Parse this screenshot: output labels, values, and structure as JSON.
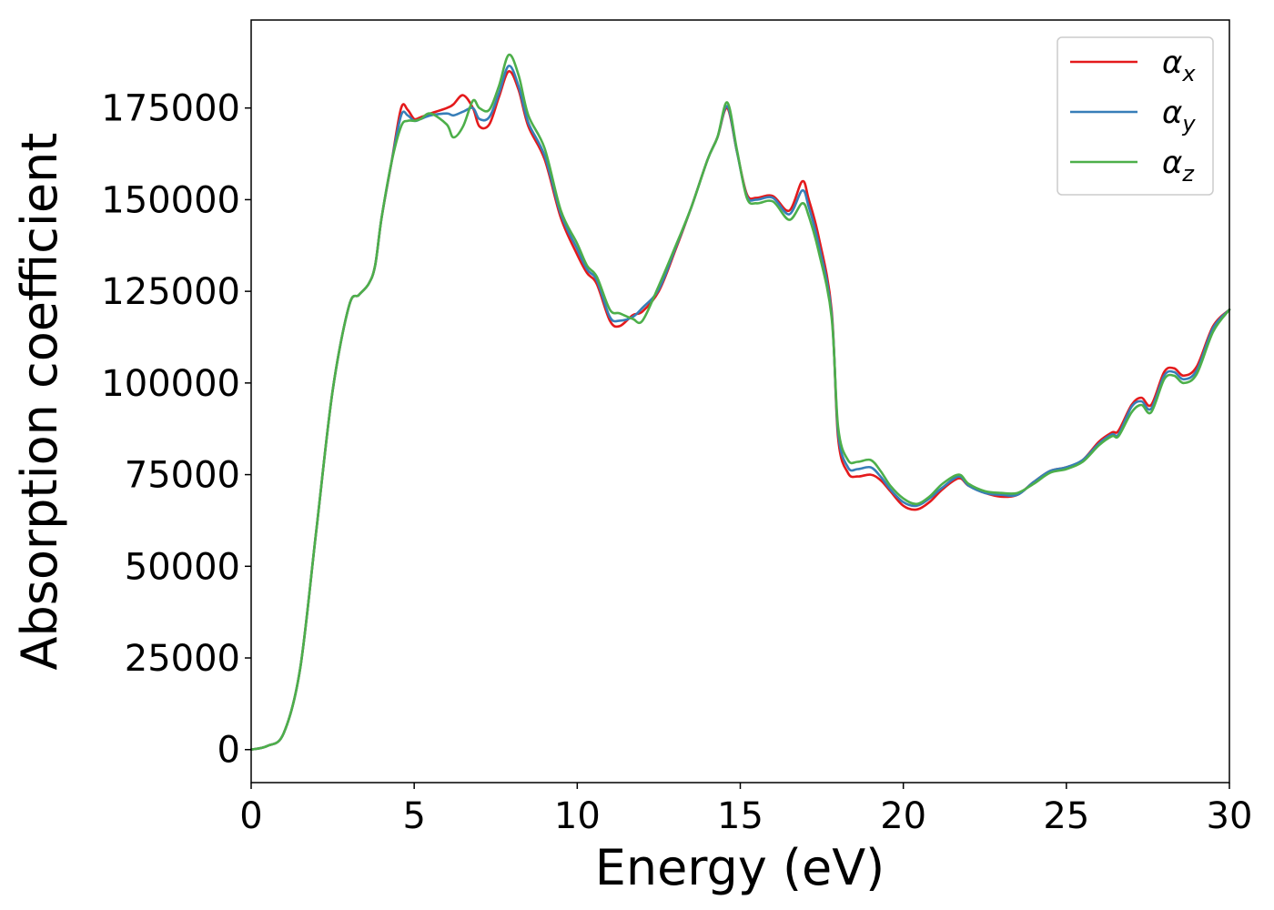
{
  "chart_data": {
    "type": "line",
    "title": "",
    "xlabel": "Energy (eV)",
    "ylabel": "Absorption coefficient",
    "xlim": [
      0,
      30
    ],
    "ylim": [
      -9000,
      199000
    ],
    "xticks": [
      0,
      5,
      10,
      15,
      20,
      25,
      30
    ],
    "yticks": [
      0,
      25000,
      50000,
      75000,
      100000,
      125000,
      150000,
      175000
    ],
    "xtick_labels": [
      "0",
      "5",
      "10",
      "15",
      "20",
      "25",
      "30"
    ],
    "ytick_labels": [
      "0",
      "25000",
      "50000",
      "75000",
      "100000",
      "125000",
      "150000",
      "175000"
    ],
    "grid": false,
    "legend_position": "top-right",
    "x": [
      0.0,
      0.5,
      1.0,
      1.5,
      2.0,
      2.5,
      3.0,
      3.3,
      3.6,
      3.8,
      4.0,
      4.3,
      4.6,
      4.8,
      5.0,
      5.2,
      5.5,
      6.0,
      6.2,
      6.5,
      6.8,
      7.0,
      7.3,
      7.6,
      7.9,
      8.2,
      8.5,
      9.0,
      9.5,
      10.0,
      10.3,
      10.6,
      11.0,
      11.3,
      11.7,
      12.0,
      12.5,
      13.0,
      13.5,
      14.0,
      14.3,
      14.6,
      14.9,
      15.2,
      15.5,
      16.0,
      16.5,
      16.9,
      17.1,
      17.4,
      17.8,
      18.0,
      18.3,
      18.6,
      19.0,
      19.3,
      19.6,
      20.0,
      20.4,
      20.8,
      21.2,
      21.7,
      22.0,
      22.5,
      23.0,
      23.5,
      24.0,
      24.5,
      25.0,
      25.5,
      26.0,
      26.4,
      26.6,
      27.0,
      27.3,
      27.6,
      28.0,
      28.3,
      28.6,
      29.0,
      29.5,
      30.0
    ],
    "series": [
      {
        "name": "α",
        "subscript": "x",
        "color": "#e41a1c",
        "values": [
          0,
          1000,
          4500,
          22000,
          60000,
          98000,
          121000,
          124000,
          127000,
          132000,
          145000,
          160000,
          175000,
          174500,
          172000,
          172500,
          173500,
          175000,
          176000,
          178500,
          175000,
          170000,
          170500,
          178000,
          185000,
          180000,
          170000,
          161000,
          145000,
          135000,
          130000,
          127000,
          117000,
          115500,
          118500,
          119500,
          125000,
          136000,
          148000,
          161000,
          167000,
          175000,
          163000,
          151500,
          150500,
          151000,
          147000,
          155000,
          150000,
          140000,
          120000,
          85000,
          75500,
          74500,
          75000,
          73500,
          70500,
          66500,
          65500,
          67500,
          71000,
          74000,
          72000,
          70000,
          69000,
          69500,
          73000,
          76000,
          77000,
          79000,
          84000,
          86500,
          87000,
          94000,
          96000,
          94000,
          103000,
          104000,
          102000,
          104500,
          115500,
          120000
        ]
      },
      {
        "name": "α",
        "subscript": "y",
        "color": "#377eb8",
        "values": [
          0,
          1000,
          4500,
          22000,
          60000,
          98000,
          121000,
          124000,
          127000,
          132000,
          145000,
          160000,
          173000,
          173000,
          171500,
          172000,
          173000,
          173500,
          173000,
          174000,
          175000,
          172000,
          172500,
          179000,
          186500,
          181000,
          171000,
          162000,
          146000,
          136500,
          131000,
          128000,
          118000,
          117000,
          118000,
          120500,
          125500,
          136500,
          148000,
          161000,
          167000,
          175500,
          163000,
          151000,
          150000,
          150500,
          146000,
          152500,
          148000,
          138000,
          119000,
          86500,
          77000,
          76500,
          77000,
          74500,
          71000,
          67500,
          66500,
          68500,
          71500,
          74500,
          72000,
          70000,
          69500,
          69500,
          73000,
          76000,
          77000,
          79000,
          83500,
          86000,
          86000,
          93500,
          95000,
          93000,
          102000,
          103000,
          101000,
          103500,
          115000,
          120000
        ]
      },
      {
        "name": "α",
        "subscript": "z",
        "color": "#4daf4a",
        "values": [
          0,
          1000,
          4500,
          22000,
          60000,
          98000,
          121000,
          124000,
          127000,
          132000,
          145000,
          160000,
          170000,
          171500,
          171500,
          172000,
          173500,
          170500,
          167000,
          170000,
          177000,
          175000,
          174500,
          181000,
          189500,
          184000,
          173000,
          164000,
          147000,
          138000,
          132000,
          129000,
          120000,
          119000,
          117500,
          117000,
          126500,
          137000,
          148000,
          161000,
          167000,
          176500,
          163500,
          150500,
          149000,
          149500,
          144500,
          149000,
          145500,
          136000,
          118000,
          88000,
          79000,
          78500,
          79000,
          76000,
          72000,
          68500,
          67000,
          69000,
          72500,
          75000,
          72500,
          70500,
          70000,
          70000,
          72500,
          75500,
          76500,
          78500,
          83000,
          85500,
          85500,
          92000,
          94000,
          92000,
          101000,
          102000,
          100000,
          102500,
          114000,
          120000
        ]
      }
    ]
  }
}
